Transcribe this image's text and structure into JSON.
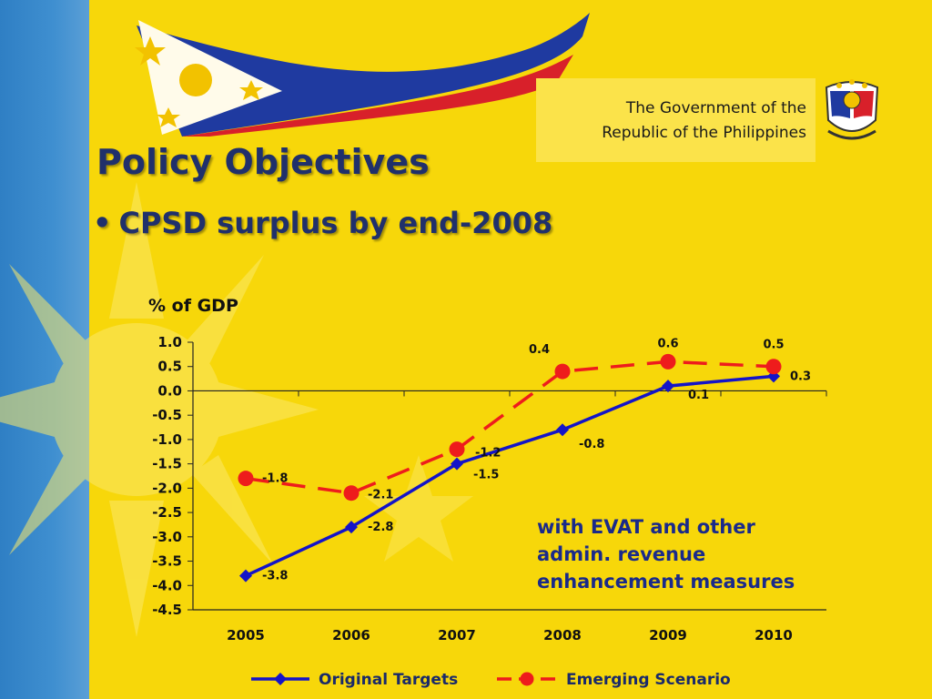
{
  "header": {
    "government_text": "The Government of the\nRepublic of the Philippines"
  },
  "slide": {
    "title": "Policy Objectives",
    "bullet": "CPSD surplus by end-2008",
    "annotation": "with EVAT and other\nadmin. revenue\nenhancement measures"
  },
  "colors": {
    "original_targets": "#1414c8",
    "emerging_scenario": "#ee1c1c",
    "background": "#f7d70a",
    "title": "#20306b"
  },
  "chart_data": {
    "type": "line",
    "ylabel": "% of GDP",
    "xlabel": "",
    "categories": [
      "2005",
      "2006",
      "2007",
      "2008",
      "2009",
      "2010"
    ],
    "ylim": [
      -4.5,
      1.0
    ],
    "yticks": [
      "1.0",
      "0.5",
      "0.0",
      "-0.5",
      "-1.0",
      "-1.5",
      "-2.0",
      "-2.5",
      "-3.0",
      "-3.5",
      "-4.0",
      "-4.5"
    ],
    "grid": false,
    "legend_position": "bottom",
    "series": [
      {
        "name": "Original Targets",
        "values": [
          -3.8,
          -2.8,
          -1.5,
          -0.8,
          0.1,
          0.3
        ],
        "labels": [
          "-3.8",
          "-2.8",
          "-1.5",
          "-0.8",
          "0.1",
          "0.3"
        ],
        "style": "solid",
        "marker": "diamond"
      },
      {
        "name": "Emerging Scenario",
        "values": [
          -1.8,
          -2.1,
          -1.2,
          0.4,
          0.6,
          0.5
        ],
        "labels": [
          "-1.8",
          "-2.1",
          "-1.2",
          "0.4",
          "0.6",
          "0.5"
        ],
        "style": "dashed",
        "marker": "circle"
      }
    ]
  }
}
